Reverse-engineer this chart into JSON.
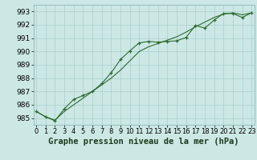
{
  "title": "Graphe pression niveau de la mer (hPa)",
  "xlabel_hours": [
    0,
    1,
    2,
    3,
    4,
    5,
    6,
    7,
    8,
    9,
    10,
    11,
    12,
    13,
    14,
    15,
    16,
    17,
    18,
    19,
    20,
    21,
    22,
    23
  ],
  "line1_marker": [
    985.5,
    985.1,
    984.8,
    985.7,
    986.4,
    986.7,
    987.0,
    987.6,
    988.4,
    989.4,
    990.05,
    990.65,
    990.75,
    990.7,
    990.75,
    990.8,
    991.05,
    991.95,
    991.75,
    992.35,
    992.85,
    992.85,
    992.55,
    992.9
  ],
  "line2_smooth": [
    985.5,
    985.1,
    984.85,
    985.5,
    986.0,
    986.5,
    987.0,
    987.5,
    988.0,
    988.6,
    989.3,
    990.0,
    990.35,
    990.6,
    990.85,
    991.1,
    991.45,
    991.85,
    992.2,
    992.55,
    992.8,
    992.9,
    992.75,
    992.9
  ],
  "ylim": [
    984.5,
    993.5
  ],
  "yticks": [
    985,
    986,
    987,
    988,
    989,
    990,
    991,
    992,
    993
  ],
  "bg_color": "#cce8e5",
  "grid_color": "#aacfcc",
  "line_color": "#2d6b2d",
  "tick_fontsize": 6.5,
  "label_fontsize": 7.5,
  "figsize": [
    3.2,
    2.0
  ],
  "dpi": 100
}
